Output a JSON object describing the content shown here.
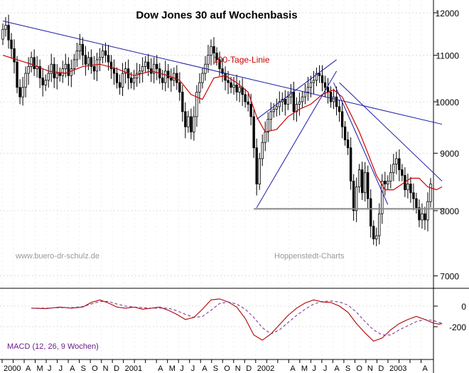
{
  "chart_data": [
    {
      "type": "candlestick",
      "title": "Dow Jones 30 auf Wochenbasis",
      "y_scale": "log",
      "ylim": [
        6500,
        12300
      ],
      "y_ticks": [
        7000,
        8000,
        9000,
        10000,
        11000,
        12000
      ],
      "y_tick_labels": [
        "7000",
        "8000",
        "9000",
        "10000",
        "11000",
        "12000"
      ],
      "x_tick_labels": [
        "2000",
        "A",
        "M",
        "J",
        "J",
        "A",
        "S",
        "O",
        "N",
        "D",
        "2001",
        "A",
        "M",
        "J",
        "J",
        "A",
        "S",
        "O",
        "N",
        "D",
        "2002",
        "A",
        "M",
        "J",
        "J",
        "A",
        "S",
        "O",
        "N",
        "D",
        "2003",
        "A"
      ],
      "x_range_months": [
        "2000-02",
        "2003-04"
      ],
      "annotations": {
        "ma_label": "100-Tage-Linie",
        "watermark_left": "www.buero-dr-schulz.de",
        "watermark_right": "Hoppenstedt-Charts"
      },
      "close_series": {
        "name": "Dow Jones 30",
        "start": "2000-02-04",
        "interval_weeks": 1,
        "closes": [
          11600,
          11700,
          11350,
          11150,
          10850,
          10300,
          10100,
          10300,
          10600,
          10750,
          10950,
          10700,
          10750,
          10500,
          10350,
          10450,
          10600,
          10800,
          10500,
          10600,
          10550,
          10700,
          10800,
          10550,
          10700,
          10900,
          11100,
          11250,
          11000,
          10800,
          10950,
          10750,
          10650,
          10900,
          10950,
          11100,
          11000,
          10850,
          10700,
          10600,
          10400,
          10300,
          10600,
          10700,
          10500,
          10400,
          10500,
          10600,
          10650,
          10750,
          10850,
          10700,
          10600,
          10800,
          10700,
          10500,
          10400,
          10650,
          10500,
          10450,
          10600,
          10400,
          10200,
          9800,
          9500,
          9700,
          9400,
          9700,
          10200,
          10400,
          10600,
          10800,
          11000,
          11200,
          11050,
          10900,
          10700,
          10600,
          10450,
          10400,
          10300,
          10350,
          10200,
          10300,
          10150,
          10000,
          9950,
          9700,
          9100,
          8450,
          8900,
          9200,
          9400,
          9650,
          9800,
          9850,
          9900,
          10000,
          10050,
          9950,
          10100,
          10200,
          9800,
          9950,
          10000,
          10100,
          10200,
          10300,
          10400,
          10450,
          10600,
          10550,
          10400,
          10300,
          10200,
          10000,
          10100,
          9900,
          9800,
          9500,
          9250,
          9100,
          8500,
          8000,
          8400,
          8700,
          8300,
          8650,
          8200,
          7750,
          7550,
          7600,
          7950,
          8500,
          8450,
          8500,
          8650,
          8800,
          8900,
          8700,
          8600,
          8350,
          8450,
          8300,
          8200,
          8050,
          7850,
          7950,
          7850,
          8150,
          8450
        ]
      },
      "ma100": {
        "name": "100-Tage-Linie",
        "points": [
          [
            0,
            11000
          ],
          [
            5,
            10900
          ],
          [
            10,
            10800
          ],
          [
            16,
            10650
          ],
          [
            22,
            10600
          ],
          [
            28,
            10750
          ],
          [
            34,
            10800
          ],
          [
            40,
            10700
          ],
          [
            46,
            10550
          ],
          [
            52,
            10650
          ],
          [
            58,
            10550
          ],
          [
            62,
            10450
          ],
          [
            66,
            10150
          ],
          [
            70,
            10050
          ],
          [
            74,
            10500
          ],
          [
            78,
            10550
          ],
          [
            82,
            10400
          ],
          [
            86,
            10200
          ],
          [
            89,
            9700
          ],
          [
            92,
            9400
          ],
          [
            96,
            9450
          ],
          [
            100,
            9700
          ],
          [
            104,
            9850
          ],
          [
            108,
            9950
          ],
          [
            112,
            10150
          ],
          [
            116,
            10250
          ],
          [
            119,
            10100
          ],
          [
            122,
            9750
          ],
          [
            125,
            9400
          ],
          [
            128,
            9000
          ],
          [
            131,
            8600
          ],
          [
            134,
            8350
          ],
          [
            137,
            8350
          ],
          [
            140,
            8450
          ],
          [
            143,
            8550
          ],
          [
            146,
            8550
          ],
          [
            149,
            8400
          ],
          [
            152,
            8350
          ],
          [
            154,
            8400
          ]
        ]
      },
      "trendlines": [
        {
          "from": [
            0,
            11800
          ],
          "to": [
            154,
            9550
          ]
        },
        {
          "from": [
            89,
            9650
          ],
          "to": [
            117,
            10900
          ]
        },
        {
          "from": [
            89,
            8050
          ],
          "to": [
            117,
            10650
          ]
        },
        {
          "from": [
            116,
            10400
          ],
          "to": [
            135,
            8100
          ]
        },
        {
          "from": [
            118,
            10400
          ],
          "to": [
            154,
            8500
          ]
        }
      ],
      "support_line": {
        "value": 8030,
        "x_range": [
          88,
          155
        ]
      }
    },
    {
      "type": "line",
      "name_label": "MACD (12, 26, 9 Wochen)",
      "ylim": [
        -360,
        150
      ],
      "y_ticks": [
        0,
        -200
      ],
      "y_tick_labels": [
        "0",
        "-200"
      ],
      "series": [
        {
          "name": "MACD",
          "points": [
            [
              10,
              -20
            ],
            [
              15,
              -25
            ],
            [
              20,
              -10
            ],
            [
              24,
              -20
            ],
            [
              28,
              -10
            ],
            [
              31,
              35
            ],
            [
              34,
              60
            ],
            [
              37,
              30
            ],
            [
              40,
              -10
            ],
            [
              43,
              -20
            ],
            [
              46,
              -10
            ],
            [
              49,
              -30
            ],
            [
              52,
              -20
            ],
            [
              55,
              -10
            ],
            [
              58,
              -40
            ],
            [
              61,
              -80
            ],
            [
              64,
              -130
            ],
            [
              67,
              -110
            ],
            [
              70,
              -30
            ],
            [
              73,
              60
            ],
            [
              76,
              70
            ],
            [
              79,
              40
            ],
            [
              82,
              -10
            ],
            [
              85,
              -120
            ],
            [
              88,
              -280
            ],
            [
              91,
              -330
            ],
            [
              94,
              -270
            ],
            [
              97,
              -180
            ],
            [
              100,
              -90
            ],
            [
              103,
              -20
            ],
            [
              106,
              30
            ],
            [
              109,
              60
            ],
            [
              112,
              40
            ],
            [
              115,
              35
            ],
            [
              118,
              0
            ],
            [
              121,
              -60
            ],
            [
              124,
              -170
            ],
            [
              127,
              -260
            ],
            [
              130,
              -340
            ],
            [
              133,
              -310
            ],
            [
              136,
              -230
            ],
            [
              139,
              -170
            ],
            [
              142,
              -130
            ],
            [
              145,
              -100
            ],
            [
              148,
              -130
            ],
            [
              151,
              -165
            ],
            [
              153,
              -175
            ],
            [
              154,
              -170
            ]
          ]
        },
        {
          "name": "Signal",
          "points": [
            [
              10,
              -20
            ],
            [
              15,
              -20
            ],
            [
              20,
              -15
            ],
            [
              24,
              -15
            ],
            [
              28,
              -5
            ],
            [
              31,
              20
            ],
            [
              34,
              45
            ],
            [
              37,
              45
            ],
            [
              40,
              20
            ],
            [
              43,
              0
            ],
            [
              46,
              -10
            ],
            [
              49,
              -15
            ],
            [
              52,
              -20
            ],
            [
              55,
              -20
            ],
            [
              58,
              -20
            ],
            [
              61,
              -45
            ],
            [
              64,
              -80
            ],
            [
              67,
              -110
            ],
            [
              70,
              -100
            ],
            [
              73,
              -40
            ],
            [
              76,
              25
            ],
            [
              79,
              40
            ],
            [
              82,
              20
            ],
            [
              85,
              -30
            ],
            [
              88,
              -110
            ],
            [
              91,
              -210
            ],
            [
              94,
              -270
            ],
            [
              97,
              -230
            ],
            [
              100,
              -160
            ],
            [
              103,
              -90
            ],
            [
              106,
              -30
            ],
            [
              109,
              20
            ],
            [
              112,
              45
            ],
            [
              115,
              50
            ],
            [
              118,
              40
            ],
            [
              121,
              10
            ],
            [
              124,
              -60
            ],
            [
              127,
              -150
            ],
            [
              130,
              -230
            ],
            [
              133,
              -280
            ],
            [
              136,
              -280
            ],
            [
              139,
              -230
            ],
            [
              142,
              -190
            ],
            [
              145,
              -150
            ],
            [
              148,
              -130
            ],
            [
              151,
              -140
            ],
            [
              153,
              -160
            ],
            [
              154,
              -165
            ]
          ]
        }
      ]
    }
  ]
}
